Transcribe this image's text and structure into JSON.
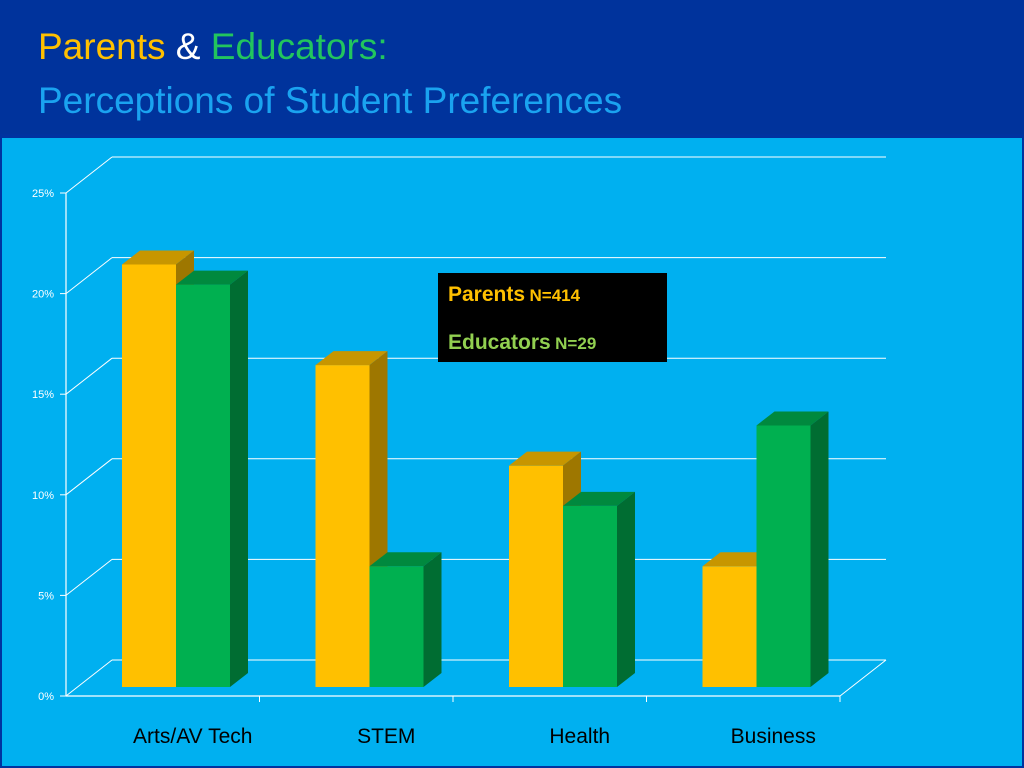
{
  "header": {
    "title_parents": "Parents",
    "title_amp": "&",
    "title_educators": "Educators:",
    "subtitle": "Perceptions of Student Preferences"
  },
  "legend": {
    "parents_label": "Parents",
    "parents_n": "N=414",
    "educators_label": "Educators",
    "educators_n": "N=29"
  },
  "colors": {
    "parents": "#ffc000",
    "educators": "#00b050",
    "background": "#00b0f0",
    "header": "#00339c"
  },
  "chart_data": {
    "type": "bar",
    "categories": [
      "Arts/AV Tech",
      "STEM",
      "Health",
      "Business"
    ],
    "series": [
      {
        "name": "Parents",
        "values": [
          21,
          16,
          11,
          6
        ],
        "color": "#ffc000"
      },
      {
        "name": "Educators",
        "values": [
          20,
          6,
          9,
          13
        ],
        "color": "#00b050"
      }
    ],
    "yticks": [
      "0%",
      "5%",
      "10%",
      "15%",
      "20%",
      "25%"
    ],
    "ylim": [
      0,
      25
    ],
    "grid": true,
    "legend_position": "top-center"
  }
}
